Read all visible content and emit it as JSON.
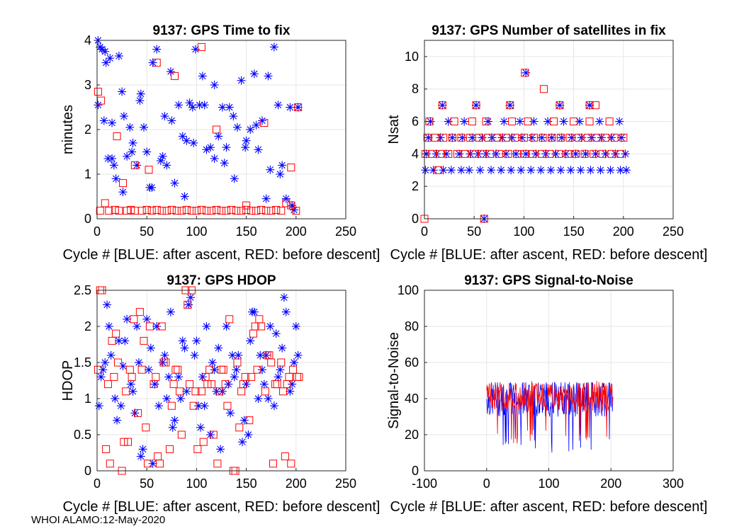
{
  "footer": "WHOI ALAMO:12-May-2020",
  "colors": {
    "after_ascent": "#0000ff",
    "before_descent": "#ff0000",
    "grid": "#e6e6e6",
    "axis": "#262626"
  },
  "chart_data": [
    {
      "type": "scatter",
      "title": "9137: GPS Time to fix",
      "xlabel": "Cycle #  [BLUE: after ascent, RED: before descent]",
      "ylabel": "minutes",
      "xlim": [
        0,
        250
      ],
      "ylim": [
        0,
        4
      ],
      "xticks": [
        0,
        50,
        100,
        150,
        200,
        250
      ],
      "yticks": [
        0,
        1,
        2,
        3,
        4
      ],
      "series": [
        {
          "name": "after ascent",
          "marker": "asterisk",
          "x": [
            1,
            3,
            5,
            7,
            9,
            11,
            13,
            15,
            17,
            19,
            22,
            25,
            27,
            30,
            33,
            36,
            40,
            43,
            47,
            50,
            53,
            56,
            60,
            64,
            68,
            70,
            74,
            78,
            82,
            86,
            90,
            93,
            96,
            99,
            103,
            106,
            110,
            114,
            118,
            122,
            126,
            130,
            133,
            137,
            141,
            145,
            150,
            154,
            158,
            162,
            166,
            170,
            174,
            178,
            182,
            186,
            190,
            194,
            198,
            202,
            1,
            8,
            15,
            26,
            35,
            44,
            55,
            66,
            75,
            88,
            97,
            108,
            118,
            128,
            138,
            149,
            160,
            172,
            184,
            196
          ],
          "y": [
            4,
            3.85,
            3.8,
            2.2,
            3.5,
            1.35,
            3.6,
            1.35,
            1.2,
            0.9,
            3.65,
            2.85,
            2.3,
            1.4,
            2.05,
            1.7,
            1.2,
            2.65,
            2.05,
            1.5,
            0.7,
            3.5,
            3.8,
            1.3,
            2.3,
            1.2,
            3.3,
            0.8,
            2.55,
            1.85,
            1.75,
            2.6,
            2.5,
            3.8,
            2.55,
            3.2,
            1.55,
            1.6,
            1.35,
            1.85,
            2.5,
            1.6,
            2.5,
            2.3,
            2.05,
            3.1,
            1.75,
            2.0,
            3.25,
            1.55,
            2.2,
            0.45,
            1.1,
            3.85,
            2.55,
            1.2,
            0.45,
            2.5,
            0.2,
            2.5,
            2.55,
            3.75,
            2.15,
            0.6,
            1.5,
            2.8,
            0.7,
            1.4,
            2.2,
            0.5,
            1.7,
            2.55,
            3.0,
            1.25,
            0.9,
            1.6,
            2.1,
            3.2,
            1.0,
            0.3
          ]
        },
        {
          "name": "before descent",
          "marker": "square",
          "x": [
            1,
            4,
            8,
            12,
            18,
            22,
            26,
            30,
            34,
            38,
            45,
            50,
            55,
            60,
            65,
            70,
            75,
            80,
            85,
            90,
            95,
            100,
            105,
            110,
            115,
            120,
            125,
            130,
            135,
            140,
            145,
            150,
            155,
            160,
            165,
            170,
            175,
            180,
            185,
            190,
            195,
            200,
            3,
            20,
            38,
            52,
            60,
            78,
            105,
            120,
            150,
            168,
            195,
            202
          ],
          "y": [
            2.85,
            2.65,
            0.35,
            0.18,
            0.2,
            0.18,
            0.8,
            0.18,
            0.2,
            0.18,
            0.18,
            0.2,
            0.18,
            0.2,
            0.18,
            0.18,
            0.2,
            0.18,
            0.18,
            0.2,
            0.18,
            0.18,
            0.2,
            0.18,
            0.18,
            0.2,
            0.18,
            0.18,
            0.2,
            0.18,
            0.18,
            0.2,
            0.18,
            0.18,
            0.2,
            0.18,
            0.18,
            0.2,
            0.18,
            0.35,
            0.3,
            0.18,
            0.18,
            1.85,
            1.2,
            1.1,
            3.5,
            3.2,
            3.85,
            2.0,
            0.3,
            2.15,
            1.15,
            2.5
          ]
        }
      ]
    },
    {
      "type": "scatter",
      "title": "9137: GPS Number of satellites in fix",
      "xlabel": "Cycle #  [BLUE: after ascent, RED: before descent]",
      "ylabel": "Nsat",
      "xlim": [
        0,
        250
      ],
      "ylim": [
        0,
        11
      ],
      "xticks": [
        0,
        50,
        100,
        150,
        200,
        250
      ],
      "yticks": [
        0,
        2,
        4,
        6,
        8,
        10
      ],
      "series": [
        {
          "name": "after ascent",
          "marker": "asterisk",
          "x": [
            2,
            12,
            22,
            35,
            46,
            54,
            62,
            72,
            82,
            92,
            102,
            112,
            122,
            132,
            142,
            152,
            162,
            172,
            182,
            192,
            202,
            4,
            16,
            28,
            38,
            48,
            58,
            68,
            78,
            88,
            98,
            108,
            118,
            128,
            138,
            148,
            158,
            168,
            178,
            188,
            198,
            1,
            9,
            19,
            27,
            37,
            45,
            56,
            67,
            77,
            87,
            97,
            107,
            117,
            127,
            137,
            147,
            157,
            167,
            177,
            187,
            197,
            203,
            6,
            24,
            40,
            64,
            80,
            96,
            110,
            124,
            140,
            156,
            176,
            196,
            18,
            52,
            86,
            102,
            136,
            166,
            60
          ],
          "y": [
            4,
            4,
            4,
            4,
            4,
            4,
            4,
            4,
            4,
            4,
            4,
            4,
            4,
            4,
            4,
            4,
            4,
            4,
            4,
            4,
            4,
            5,
            5,
            5,
            5,
            5,
            5,
            5,
            5,
            5,
            5,
            5,
            5,
            5,
            5,
            5,
            5,
            5,
            5,
            5,
            5,
            3,
            3,
            3,
            3,
            3,
            3,
            3,
            3,
            3,
            3,
            3,
            3,
            3,
            3,
            3,
            3,
            3,
            3,
            3,
            3,
            3,
            3,
            6,
            6,
            6,
            6,
            6,
            6,
            6,
            6,
            6,
            6,
            6,
            6,
            7,
            7,
            7,
            9,
            7,
            7,
            0
          ]
        },
        {
          "name": "before descent",
          "marker": "square",
          "x": [
            1,
            8,
            16,
            24,
            33,
            41,
            50,
            58,
            66,
            75,
            84,
            93,
            101,
            109,
            118,
            126,
            135,
            144,
            152,
            161,
            170,
            179,
            188,
            197,
            3,
            11,
            19,
            28,
            37,
            46,
            55,
            64,
            73,
            82,
            91,
            100,
            110,
            119,
            128,
            137,
            146,
            155,
            164,
            173,
            182,
            191,
            200,
            5,
            30,
            48,
            62,
            88,
            104,
            130,
            150,
            166,
            186,
            14,
            18,
            52,
            86,
            101,
            120,
            136,
            166,
            172,
            60,
            0
          ],
          "y": [
            4,
            4,
            4,
            4,
            4,
            4,
            4,
            4,
            4,
            4,
            4,
            4,
            4,
            4,
            4,
            4,
            4,
            4,
            4,
            4,
            4,
            4,
            4,
            4,
            5,
            5,
            5,
            5,
            5,
            5,
            5,
            5,
            5,
            5,
            5,
            5,
            5,
            5,
            5,
            5,
            5,
            5,
            5,
            5,
            5,
            5,
            5,
            6,
            6,
            6,
            6,
            6,
            6,
            6,
            6,
            6,
            6,
            3,
            7,
            7,
            7,
            9,
            8,
            7,
            7,
            7,
            0,
            0
          ]
        }
      ]
    },
    {
      "type": "scatter",
      "title": "9137: GPS HDOP",
      "xlabel": "Cycle #  [BLUE: after ascent, RED: before descent]",
      "ylabel": "HDOP",
      "xlim": [
        0,
        250
      ],
      "ylim": [
        0,
        2.5
      ],
      "xticks": [
        0,
        50,
        100,
        150,
        200,
        250
      ],
      "yticks": [
        0,
        0.5,
        1,
        1.5,
        2,
        2.5
      ],
      "series": [
        {
          "name": "after ascent",
          "marker": "asterisk",
          "x": [
            2,
            6,
            10,
            14,
            18,
            22,
            26,
            30,
            34,
            38,
            42,
            46,
            50,
            54,
            58,
            62,
            66,
            70,
            74,
            78,
            82,
            86,
            90,
            94,
            98,
            102,
            106,
            110,
            114,
            118,
            122,
            126,
            130,
            134,
            138,
            142,
            146,
            150,
            154,
            158,
            162,
            166,
            170,
            174,
            178,
            182,
            186,
            190,
            194,
            198,
            202,
            4,
            12,
            20,
            28,
            36,
            44,
            52,
            60,
            68,
            76,
            84,
            92,
            100,
            108,
            116,
            124,
            132,
            140,
            148,
            156,
            164,
            172,
            180,
            188,
            196,
            8,
            24,
            40,
            56,
            72,
            88,
            104,
            120,
            136,
            152,
            168,
            184,
            200
          ],
          "y": [
            0.9,
            1.4,
            2.3,
            1.6,
            1.0,
            1.8,
            1.45,
            2.1,
            1.2,
            0.8,
            1.5,
            0.3,
            2.1,
            1.7,
            1.2,
            0.9,
            1.5,
            1.0,
            2.2,
            0.7,
            1.3,
            1.8,
            1.1,
            2.4,
            1.6,
            0.9,
            1.3,
            2.0,
            0.5,
            1.4,
            1.7,
            1.1,
            2.0,
            0.8,
            1.3,
            1.6,
            0.4,
            1.2,
            1.8,
            2.2,
            1.0,
            1.4,
            1.6,
            2.0,
            0.9,
            1.3,
            1.7,
            2.2,
            1.1,
            1.5,
            1.6,
            1.3,
            2.0,
            0.7,
            1.8,
            1.1,
            0.2,
            1.4,
            2.0,
            1.6,
            0.6,
            1.0,
            2.3,
            1.8,
            0.9,
            1.5,
            0.3,
            1.2,
            1.4,
            0.7,
            2.2,
            1.6,
            1.0,
            1.9,
            2.4,
            1.2,
            1.5,
            0.9,
            2.0,
            0.1,
            1.3,
            1.7,
            0.6,
            1.1,
            1.6,
            0.5,
            1.2,
            1.4,
            2.0
          ]
        },
        {
          "name": "before descent",
          "marker": "square",
          "x": [
            1,
            5,
            9,
            13,
            17,
            21,
            25,
            29,
            33,
            37,
            41,
            45,
            49,
            53,
            57,
            61,
            65,
            69,
            73,
            77,
            81,
            85,
            89,
            93,
            97,
            101,
            105,
            109,
            113,
            117,
            121,
            125,
            129,
            133,
            137,
            141,
            145,
            149,
            153,
            157,
            161,
            165,
            169,
            173,
            177,
            181,
            185,
            189,
            193,
            197,
            201,
            3,
            11,
            19,
            27,
            35,
            43,
            51,
            59,
            67,
            75,
            83,
            91,
            99,
            107,
            115,
            123,
            131,
            139,
            147,
            155,
            163,
            171,
            179,
            187,
            195,
            203,
            15,
            31,
            47,
            63,
            79,
            95,
            111,
            127,
            143,
            159,
            175,
            191
          ],
          "y": [
            1.4,
            2.5,
            0.3,
            0.1,
            1.3,
            1.5,
            0.0,
            1.1,
            1.4,
            2.1,
            0.8,
            1.4,
            0.6,
            2.0,
            1.2,
            0.2,
            2.0,
            1.5,
            0.3,
            1.2,
            1.4,
            0.5,
            2.5,
            1.2,
            0.9,
            0.3,
            1.1,
            1.3,
            1.4,
            0.5,
            0.1,
            1.4,
            1.2,
            2.1,
            0.0,
            1.5,
            1.1,
            1.3,
            0.7,
            1.9,
            1.4,
            2.0,
            1.1,
            1.6,
            0.1,
            1.2,
            1.5,
            0.2,
            1.3,
            1.4,
            1.3,
            2.5,
            1.2,
            1.9,
            0.4,
            1.3,
            2.2,
            0.1,
            1.3,
            1.5,
            0.9,
            1.1,
            2.3,
            1.1,
            0.4,
            1.2,
            1.1,
            0.9,
            0.0,
            1.2,
            1.3,
            2.1,
            1.6,
            1.2,
            1.1,
            0.1,
            1.3,
            1.8,
            0.4,
            1.8,
            0.1,
            1.4,
            2.5,
            1.2,
            1.4,
            0.6,
            2.0,
            1.5,
            1.2
          ]
        }
      ]
    },
    {
      "type": "line",
      "title": "9137: GPS Signal-to-Noise",
      "xlabel": "Cycle #  [BLUE: after ascent, RED: before descent]",
      "ylabel": "Signal-to-Noise",
      "xlim": [
        -100,
        300
      ],
      "ylim": [
        0,
        100
      ],
      "xticks": [
        -100,
        0,
        100,
        200,
        300
      ],
      "yticks": [
        0,
        20,
        40,
        60,
        80,
        100
      ],
      "series": [
        {
          "name": "after ascent",
          "x_range": [
            0,
            203
          ],
          "center": 40,
          "amplitude": 10,
          "min": 10,
          "max": 49
        },
        {
          "name": "before descent",
          "x_range": [
            0,
            203
          ],
          "center": 41,
          "amplitude": 8,
          "min": 15,
          "max": 50
        }
      ]
    }
  ]
}
